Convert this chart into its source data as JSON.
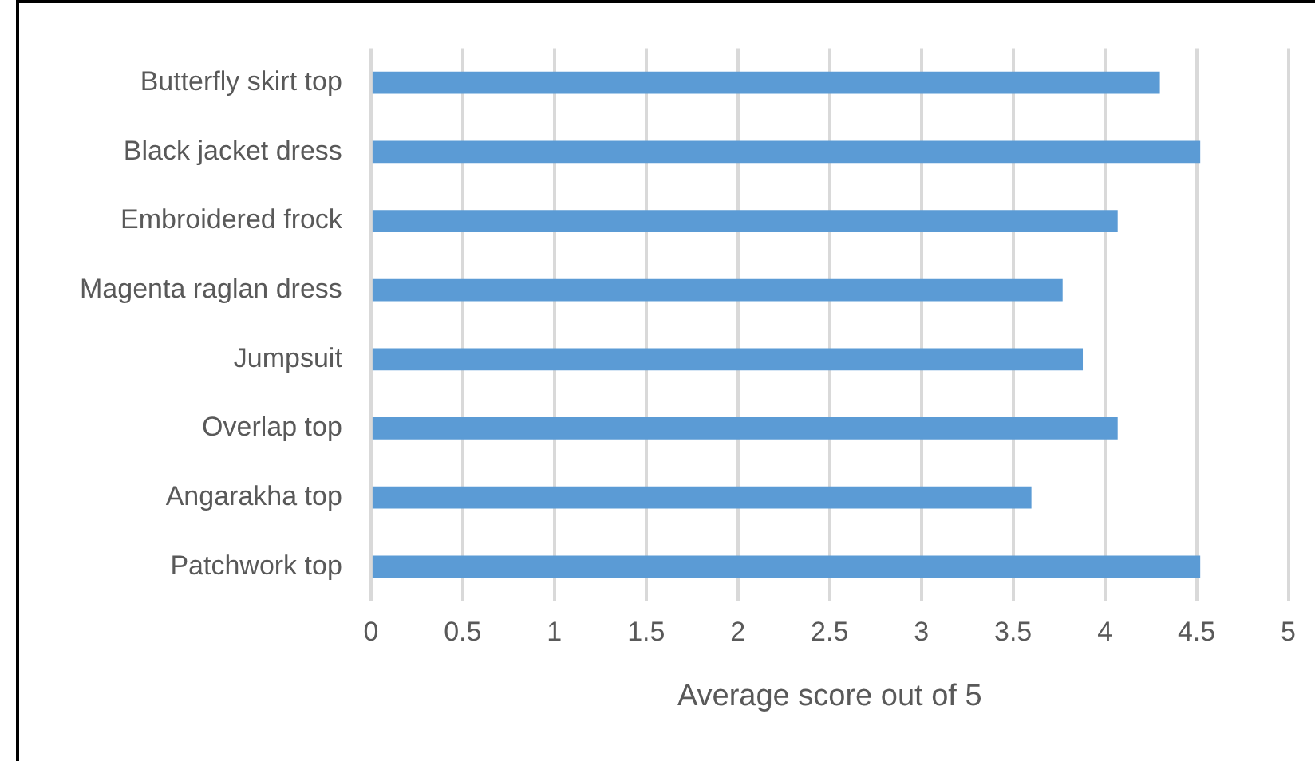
{
  "chart_data": {
    "type": "bar",
    "orientation": "horizontal",
    "xlabel": "Average score out of 5",
    "categories": [
      "Butterfly skirt top",
      "Black jacket dress",
      "Embroidered frock",
      "Magenta raglan dress",
      "Jumpsuit",
      "Overlap top",
      "Angarakha top",
      "Patchwork top"
    ],
    "values": [
      4.3,
      4.52,
      4.07,
      3.77,
      3.88,
      4.07,
      3.6,
      4.52
    ],
    "color": "#5b9bd5",
    "xlim": [
      0,
      5
    ],
    "xticks": [
      0,
      0.5,
      1,
      1.5,
      2,
      2.5,
      3,
      3.5,
      4,
      4.5,
      5
    ],
    "grid": "x",
    "legend": false
  }
}
